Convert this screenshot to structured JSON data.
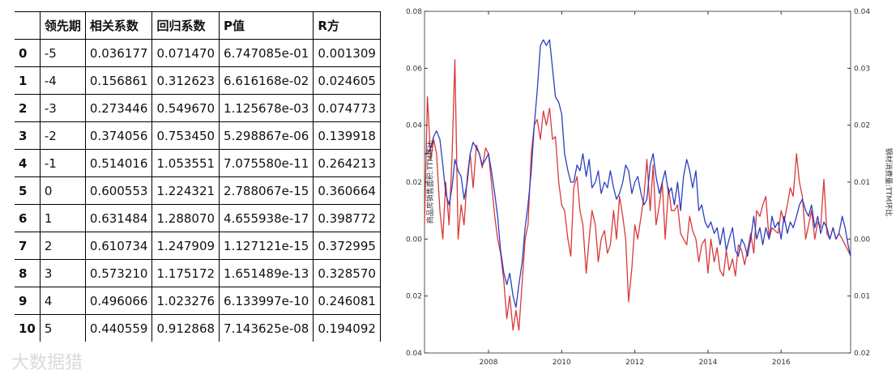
{
  "table": {
    "headers": [
      "",
      "领先期",
      "相关系数",
      "回归系数",
      "P值",
      "R方"
    ],
    "rows": [
      [
        "0",
        "-5",
        "0.036177",
        "0.071470",
        "6.747085e-01",
        "0.001309"
      ],
      [
        "1",
        "-4",
        "0.156861",
        "0.312623",
        "6.616168e-02",
        "0.024605"
      ],
      [
        "2",
        "-3",
        "0.273446",
        "0.549670",
        "1.125678e-03",
        "0.074773"
      ],
      [
        "3",
        "-2",
        "0.374056",
        "0.753450",
        "5.298867e-06",
        "0.139918"
      ],
      [
        "4",
        "-1",
        "0.514016",
        "1.053551",
        "7.075580e-11",
        "0.264213"
      ],
      [
        "5",
        "0",
        "0.600553",
        "1.224321",
        "2.788067e-15",
        "0.360664"
      ],
      [
        "6",
        "1",
        "0.631484",
        "1.288070",
        "4.655938e-17",
        "0.398772"
      ],
      [
        "7",
        "2",
        "0.610734",
        "1.247909",
        "1.127121e-15",
        "0.372995"
      ],
      [
        "8",
        "3",
        "0.573210",
        "1.175172",
        "1.651489e-13",
        "0.328570"
      ],
      [
        "9",
        "4",
        "0.496066",
        "1.023276",
        "6.133997e-10",
        "0.246081"
      ],
      [
        "10",
        "5",
        "0.440559",
        "0.912868",
        "7.143625e-08",
        "0.194092"
      ]
    ]
  },
  "watermark": "大数据猎",
  "chart_data": {
    "type": "line",
    "xlim": [
      2006.25,
      2017.9
    ],
    "x_ticks": [
      2008,
      2010,
      2012,
      2014,
      2016
    ],
    "x_tick_labels": [
      "2008",
      "2010",
      "2012",
      "2014",
      "2016"
    ],
    "ylabel": "商品房销售面积:TTM环比",
    "y2label": "钢材消费量:TTM环比",
    "ylim": [
      -0.04,
      0.08
    ],
    "y_ticks": [
      -0.04,
      -0.02,
      0.0,
      0.02,
      0.04,
      0.06,
      0.08
    ],
    "y_tick_labels": [
      "0.04",
      "0.02",
      "0.00",
      "0.02",
      "0.04",
      "0.06",
      "0.08"
    ],
    "y2lim": [
      -0.02,
      0.04
    ],
    "y2_ticks": [
      -0.02,
      -0.01,
      0.0,
      0.01,
      0.02,
      0.03,
      0.04
    ],
    "y2_tick_labels": [
      "0.02",
      "0.01",
      "0.00",
      "0.01",
      "0.02",
      "0.03",
      "0.04"
    ],
    "grid": false,
    "colors": {
      "axis": "#333333",
      "frame": "#555555"
    },
    "series": [
      {
        "color": "#d9383a",
        "axis": "left",
        "x": [
          2006.25,
          2006.33,
          2006.42,
          2006.5,
          2006.58,
          2006.67,
          2006.75,
          2006.83,
          2006.92,
          2007.0,
          2007.08,
          2007.17,
          2007.25,
          2007.33,
          2007.42,
          2007.5,
          2007.58,
          2007.67,
          2007.75,
          2007.83,
          2007.92,
          2008.0,
          2008.08,
          2008.17,
          2008.25,
          2008.33,
          2008.42,
          2008.5,
          2008.58,
          2008.67,
          2008.75,
          2008.83,
          2008.92,
          2009.0,
          2009.08,
          2009.17,
          2009.25,
          2009.33,
          2009.42,
          2009.5,
          2009.58,
          2009.67,
          2009.75,
          2009.83,
          2009.92,
          2010.0,
          2010.08,
          2010.17,
          2010.25,
          2010.33,
          2010.42,
          2010.5,
          2010.58,
          2010.67,
          2010.75,
          2010.83,
          2010.92,
          2011.0,
          2011.08,
          2011.17,
          2011.25,
          2011.33,
          2011.42,
          2011.5,
          2011.58,
          2011.67,
          2011.75,
          2011.83,
          2011.92,
          2012.0,
          2012.08,
          2012.17,
          2012.25,
          2012.33,
          2012.42,
          2012.5,
          2012.58,
          2012.67,
          2012.75,
          2012.83,
          2012.92,
          2013.0,
          2013.08,
          2013.17,
          2013.25,
          2013.33,
          2013.42,
          2013.5,
          2013.58,
          2013.67,
          2013.75,
          2013.83,
          2013.92,
          2014.0,
          2014.08,
          2014.17,
          2014.25,
          2014.33,
          2014.42,
          2014.5,
          2014.58,
          2014.67,
          2014.75,
          2014.83,
          2014.92,
          2015.0,
          2015.08,
          2015.17,
          2015.25,
          2015.33,
          2015.42,
          2015.5,
          2015.58,
          2015.67,
          2015.75,
          2015.83,
          2015.92,
          2016.0,
          2016.08,
          2016.17,
          2016.25,
          2016.33,
          2016.42,
          2016.5,
          2016.58,
          2016.67,
          2016.75,
          2016.83,
          2016.92,
          2017.0,
          2017.08,
          2017.17,
          2017.25,
          2017.33,
          2017.42,
          2017.5,
          2017.58,
          2017.67,
          2017.75,
          2017.83,
          2017.9
        ],
        "y": [
          0.005,
          0.05,
          0.028,
          0.035,
          0.03,
          0.01,
          0.0,
          0.02,
          0.005,
          0.028,
          0.063,
          0.0,
          0.012,
          0.005,
          0.022,
          0.03,
          0.018,
          0.033,
          0.03,
          0.025,
          0.032,
          0.03,
          0.02,
          0.008,
          0.0,
          -0.005,
          -0.015,
          -0.028,
          -0.02,
          -0.032,
          -0.025,
          -0.032,
          -0.015,
          0.0,
          0.005,
          0.03,
          0.04,
          0.042,
          0.035,
          0.045,
          0.04,
          0.046,
          0.035,
          0.036,
          0.02,
          0.012,
          0.01,
          0.0,
          -0.006,
          0.018,
          0.022,
          0.01,
          0.005,
          -0.012,
          0.0,
          0.01,
          0.005,
          -0.008,
          0.0,
          0.003,
          -0.005,
          -0.002,
          0.01,
          0.0,
          0.015,
          0.008,
          0.0,
          -0.022,
          -0.01,
          0.005,
          0.0,
          0.008,
          0.015,
          0.028,
          0.01,
          0.026,
          0.005,
          0.012,
          0.02,
          0.0,
          0.018,
          0.01,
          0.01,
          0.012,
          0.002,
          0.0,
          -0.002,
          0.008,
          0.003,
          0.0,
          -0.008,
          -0.002,
          0.0,
          -0.012,
          0.0,
          -0.008,
          -0.003,
          -0.011,
          -0.013,
          -0.004,
          -0.011,
          -0.007,
          -0.013,
          -0.002,
          -0.004,
          -0.009,
          -0.004,
          0.002,
          -0.005,
          0.01,
          0.008,
          0.012,
          0.015,
          0.0,
          0.004,
          0.003,
          0.002,
          0.01,
          0.006,
          0.012,
          0.018,
          0.015,
          0.03,
          0.02,
          0.015,
          0.0,
          0.005,
          0.01,
          0.0,
          0.006,
          0.004,
          0.021,
          0.002,
          0.0,
          0.004,
          0.0,
          0.002,
          0.0,
          -0.002,
          -0.004,
          -0.006
        ]
      },
      {
        "color": "#2a3fc0",
        "axis": "right",
        "x": [
          2006.25,
          2006.33,
          2006.42,
          2006.5,
          2006.58,
          2006.67,
          2006.75,
          2006.83,
          2006.92,
          2007.0,
          2007.08,
          2007.17,
          2007.25,
          2007.33,
          2007.42,
          2007.5,
          2007.58,
          2007.67,
          2007.75,
          2007.83,
          2007.92,
          2008.0,
          2008.08,
          2008.17,
          2008.25,
          2008.33,
          2008.42,
          2008.5,
          2008.58,
          2008.67,
          2008.75,
          2008.83,
          2008.92,
          2009.0,
          2009.08,
          2009.17,
          2009.25,
          2009.33,
          2009.42,
          2009.5,
          2009.58,
          2009.67,
          2009.75,
          2009.83,
          2009.92,
          2010.0,
          2010.08,
          2010.17,
          2010.25,
          2010.33,
          2010.42,
          2010.5,
          2010.58,
          2010.67,
          2010.75,
          2010.83,
          2010.92,
          2011.0,
          2011.08,
          2011.17,
          2011.25,
          2011.33,
          2011.42,
          2011.5,
          2011.58,
          2011.67,
          2011.75,
          2011.83,
          2011.92,
          2012.0,
          2012.08,
          2012.17,
          2012.25,
          2012.33,
          2012.42,
          2012.5,
          2012.58,
          2012.67,
          2012.75,
          2012.83,
          2012.92,
          2013.0,
          2013.08,
          2013.17,
          2013.25,
          2013.33,
          2013.42,
          2013.5,
          2013.58,
          2013.67,
          2013.75,
          2013.83,
          2013.92,
          2014.0,
          2014.08,
          2014.17,
          2014.25,
          2014.33,
          2014.42,
          2014.5,
          2014.58,
          2014.67,
          2014.75,
          2014.83,
          2014.92,
          2015.0,
          2015.08,
          2015.17,
          2015.25,
          2015.33,
          2015.42,
          2015.5,
          2015.58,
          2015.67,
          2015.75,
          2015.83,
          2015.92,
          2016.0,
          2016.08,
          2016.17,
          2016.25,
          2016.33,
          2016.42,
          2016.5,
          2016.58,
          2016.67,
          2016.75,
          2016.83,
          2016.92,
          2017.0,
          2017.08,
          2017.17,
          2017.25,
          2017.33,
          2017.42,
          2017.5,
          2017.58,
          2017.67,
          2017.75,
          2017.83,
          2017.9
        ],
        "y": [
          0.015,
          0.015,
          0.016,
          0.018,
          0.019,
          0.0175,
          0.013,
          0.008,
          0.006,
          0.009,
          0.014,
          0.012,
          0.011,
          0.007,
          0.01,
          0.015,
          0.017,
          0.016,
          0.015,
          0.013,
          0.014,
          0.015,
          0.012,
          0.008,
          0.004,
          -0.002,
          -0.006,
          -0.008,
          -0.006,
          -0.01,
          -0.012,
          -0.008,
          -0.004,
          0.002,
          0.006,
          0.012,
          0.02,
          0.026,
          0.034,
          0.035,
          0.034,
          0.035,
          0.03,
          0.025,
          0.024,
          0.022,
          0.015,
          0.012,
          0.01,
          0.01,
          0.013,
          0.012,
          0.015,
          0.011,
          0.014,
          0.009,
          0.01,
          0.012,
          0.008,
          0.01,
          0.009,
          0.012,
          0.009,
          0.007,
          0.008,
          0.01,
          0.013,
          0.012,
          0.008,
          0.01,
          0.011,
          0.008,
          0.006,
          0.007,
          0.013,
          0.015,
          0.011,
          0.008,
          0.01,
          0.012,
          0.008,
          0.009,
          0.006,
          0.01,
          0.005,
          0.011,
          0.014,
          0.012,
          0.009,
          0.012,
          0.005,
          0.006,
          0.003,
          0.002,
          0.003,
          0.001,
          0.002,
          -0.001,
          0.002,
          -0.002,
          0.0,
          0.002,
          -0.002,
          -0.003,
          0.0,
          -0.001,
          -0.003,
          0.0,
          0.004,
          0.0,
          0.002,
          -0.001,
          0.002,
          0.0,
          0.004,
          0.002,
          0.003,
          0.0,
          0.004,
          0.001,
          0.003,
          0.002,
          0.004,
          0.006,
          0.007,
          0.005,
          0.004,
          0.006,
          0.002,
          0.004,
          0.001,
          0.003,
          0.002,
          0.0,
          0.002,
          0.0,
          0.001,
          0.004,
          0.002,
          -0.001,
          -0.003
        ]
      }
    ]
  }
}
